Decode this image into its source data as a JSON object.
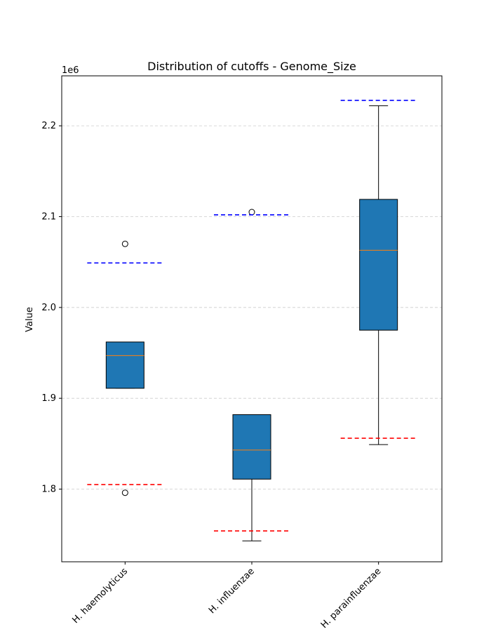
{
  "chart_data": {
    "type": "box",
    "title": "Distribution of cutoffs - Genome_Size",
    "xlabel": "",
    "ylabel": "Value",
    "y_offset_label": "1e6",
    "y_scale_factor": 1000000,
    "ylim": [
      1.72,
      2.255
    ],
    "yticks": [
      1.8,
      1.9,
      2.0,
      2.1,
      2.2
    ],
    "ytick_labels": [
      "1.8",
      "1.9",
      "2.0",
      "2.1",
      "2.2"
    ],
    "grid": {
      "axis": "y",
      "style": "dashed"
    },
    "categories": [
      "H. haemolyticus",
      "H. influenzae",
      "H. parainfluenzae"
    ],
    "boxes": [
      {
        "name": "H. haemolyticus",
        "whisker_low": 1.911,
        "q1": 1.911,
        "median": 1.947,
        "q3": 1.962,
        "whisker_high": 1.962,
        "outliers": [
          2.07,
          1.796
        ],
        "cutoff_low": 1.805,
        "cutoff_high": 2.049
      },
      {
        "name": "H. influenzae",
        "whisker_low": 1.743,
        "q1": 1.811,
        "median": 1.843,
        "q3": 1.882,
        "whisker_high": 1.882,
        "outliers": [
          2.105
        ],
        "cutoff_low": 1.754,
        "cutoff_high": 2.102
      },
      {
        "name": "H. parainfluenzae",
        "whisker_low": 1.849,
        "q1": 1.975,
        "median": 2.063,
        "q3": 2.119,
        "whisker_high": 2.222,
        "outliers": [],
        "cutoff_low": 1.856,
        "cutoff_high": 2.228
      }
    ],
    "colors": {
      "box_fill": "#1f77b4",
      "median": "#ff7f0e",
      "cutoff_low": "#ff0000",
      "cutoff_high": "#0000ff",
      "grid": "#cccccc"
    }
  }
}
